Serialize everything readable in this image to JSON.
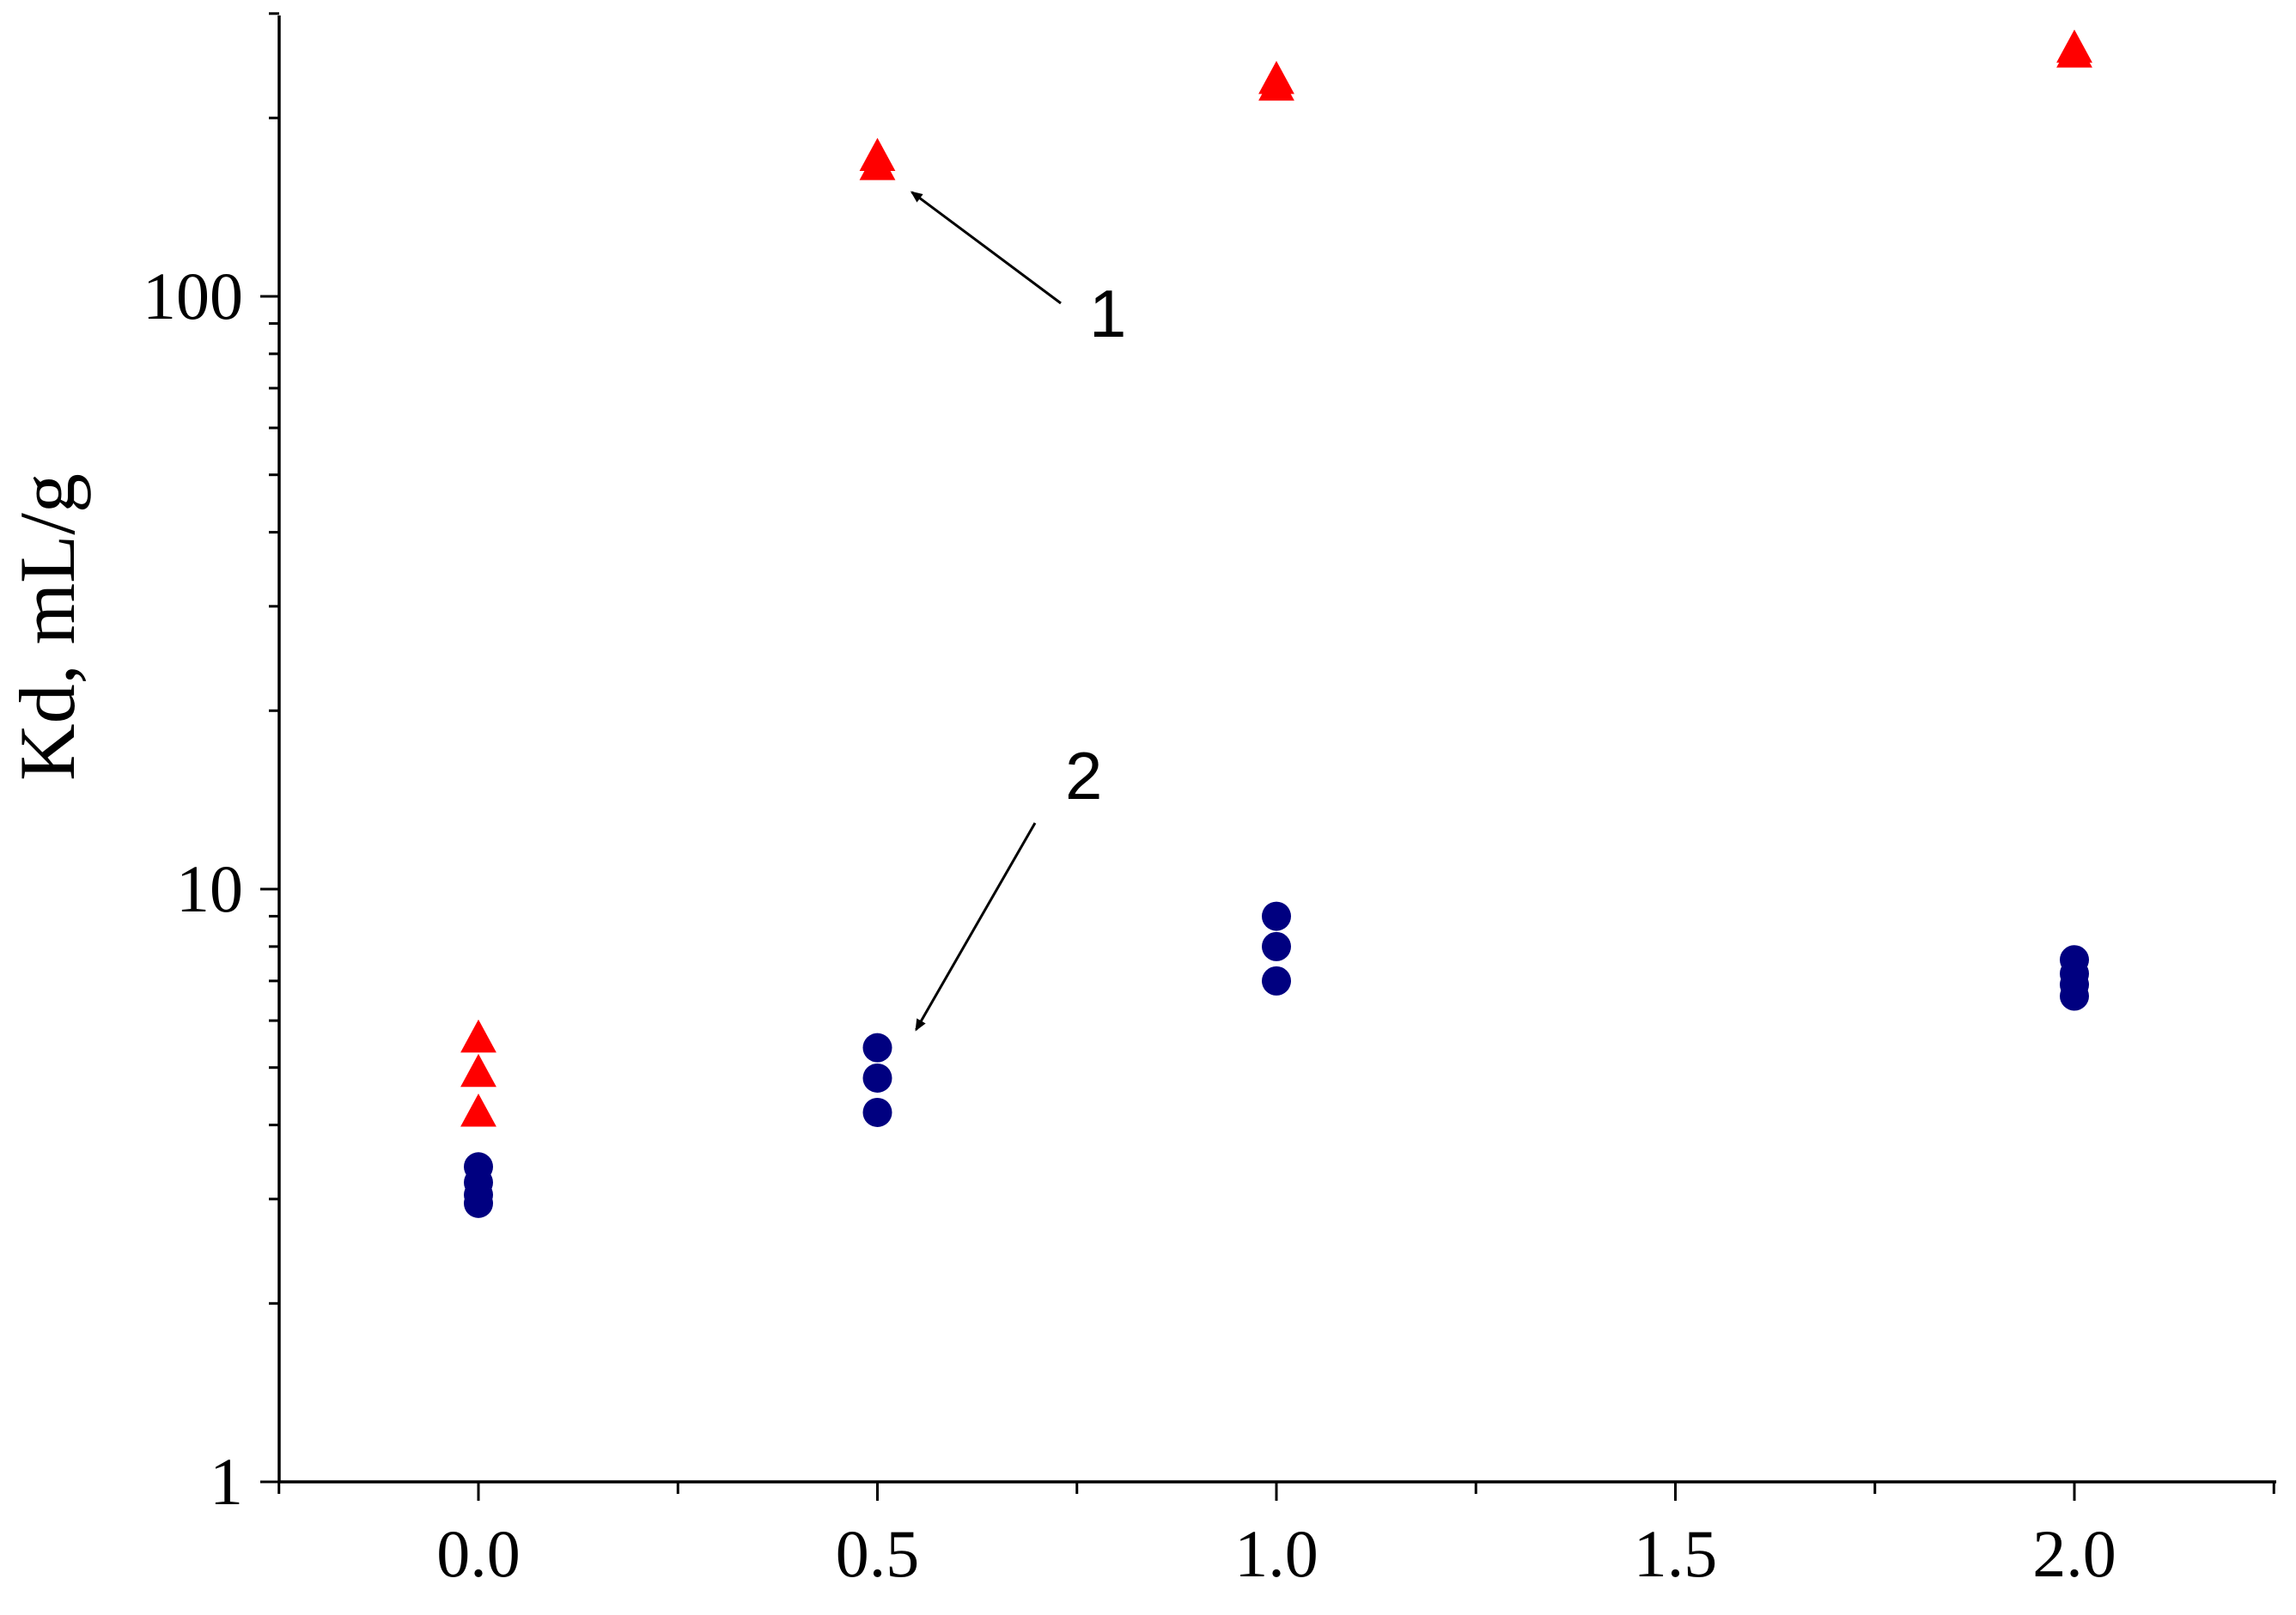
{
  "chart_data": {
    "type": "scatter",
    "title": "",
    "xlabel": "",
    "ylabel": "Kd, mL/g",
    "xlim": [
      -0.25,
      2.25
    ],
    "ylim": [
      1,
      300
    ],
    "yscale": "log",
    "grid": false,
    "x_ticks": [
      0.0,
      0.5,
      1.0,
      1.5,
      2.0
    ],
    "x_tick_labels": [
      "0.0",
      "0.5",
      "1.0",
      "1.5",
      "2.0"
    ],
    "y_ticks": [
      1,
      10,
      100
    ],
    "y_tick_labels": [
      "1",
      "10",
      "100"
    ],
    "series": [
      {
        "marker": "triangle",
        "color": "#ff0000",
        "points": [
          {
            "x": 0.0,
            "y": 5.6
          },
          {
            "x": 0.0,
            "y": 4.9
          },
          {
            "x": 0.0,
            "y": 4.2
          },
          {
            "x": 0.5,
            "y": 172
          },
          {
            "x": 0.5,
            "y": 166
          },
          {
            "x": 1.0,
            "y": 232
          },
          {
            "x": 1.0,
            "y": 226
          },
          {
            "x": 2.0,
            "y": 262
          },
          {
            "x": 2.0,
            "y": 257
          }
        ]
      },
      {
        "marker": "circle",
        "color": "#000080",
        "points": [
          {
            "x": 0.0,
            "y": 3.4
          },
          {
            "x": 0.0,
            "y": 3.2
          },
          {
            "x": 0.0,
            "y": 3.05
          },
          {
            "x": 0.0,
            "y": 2.95
          },
          {
            "x": 0.5,
            "y": 5.4
          },
          {
            "x": 0.5,
            "y": 4.8
          },
          {
            "x": 0.5,
            "y": 4.2
          },
          {
            "x": 1.0,
            "y": 9.0
          },
          {
            "x": 1.0,
            "y": 8.0
          },
          {
            "x": 1.0,
            "y": 7.0
          },
          {
            "x": 2.0,
            "y": 7.6
          },
          {
            "x": 2.0,
            "y": 7.2
          },
          {
            "x": 2.0,
            "y": 6.9
          },
          {
            "x": 2.0,
            "y": 6.6
          }
        ]
      }
    ],
    "annotations": [
      {
        "label": "1",
        "target": {
          "x": 0.5,
          "y": 145
        }
      },
      {
        "label": "2",
        "target": {
          "x": 0.5,
          "y": 5.6
        }
      }
    ]
  }
}
